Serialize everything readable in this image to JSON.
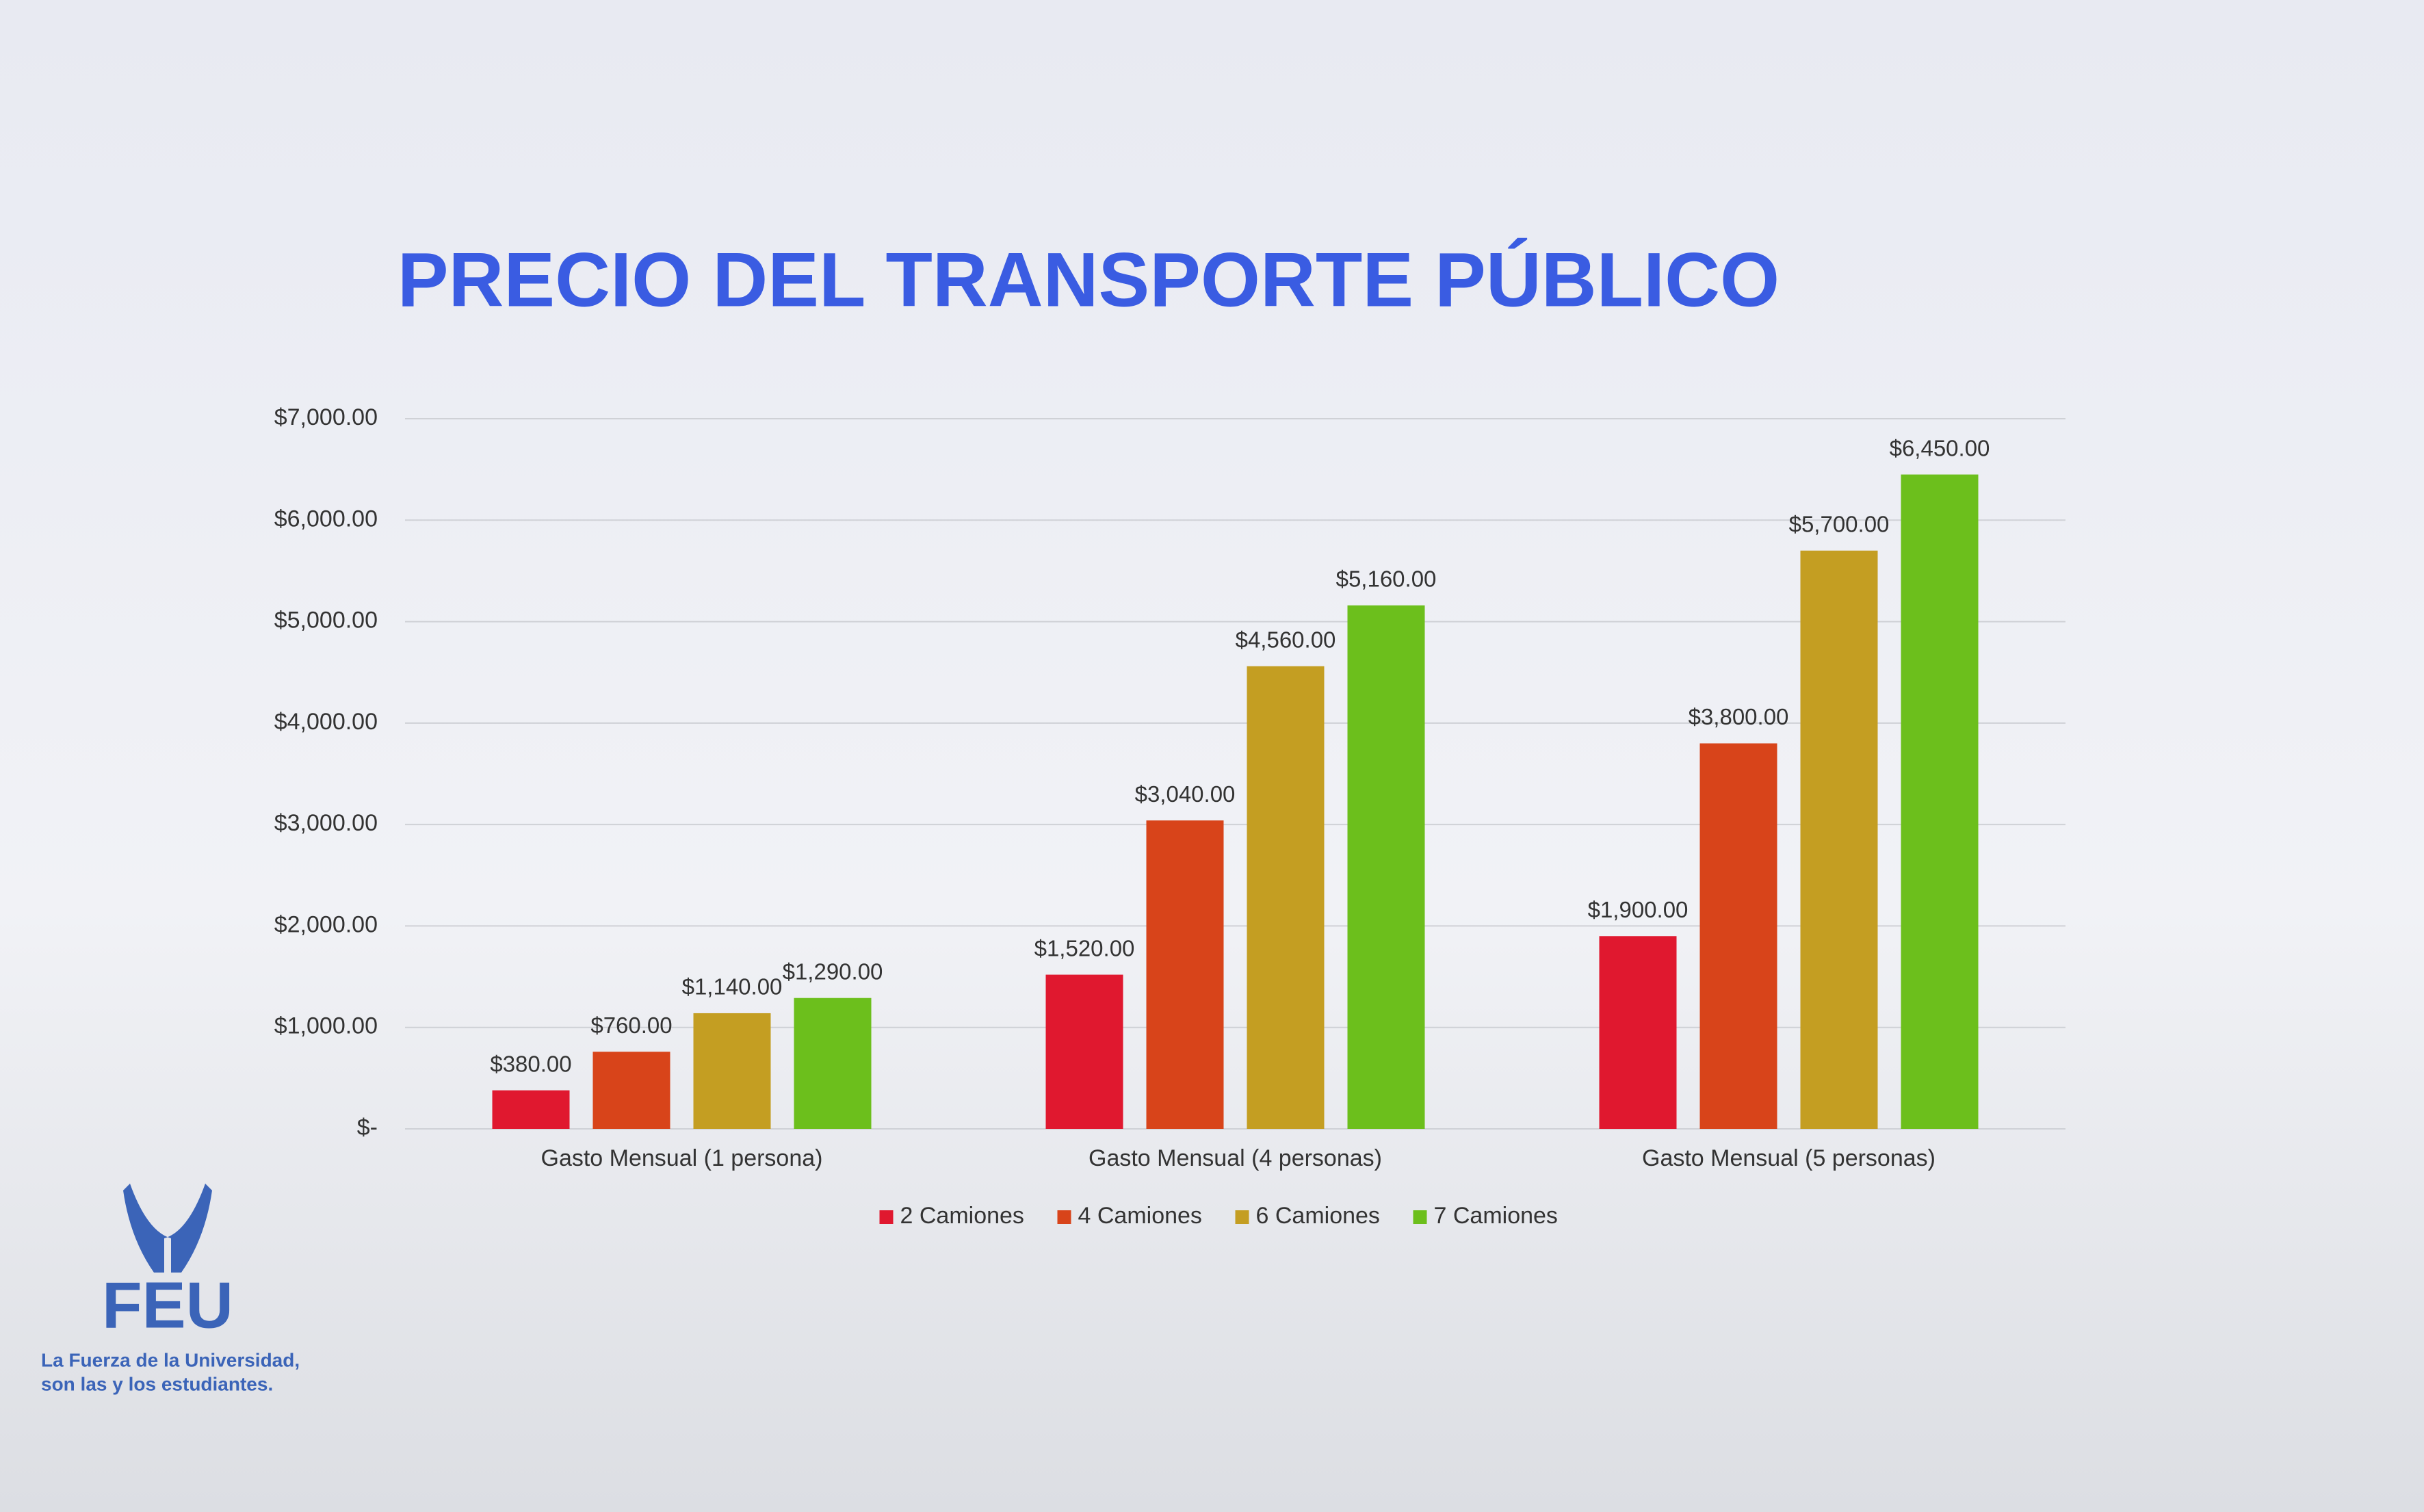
{
  "chart_data": {
    "type": "bar",
    "title": "PRECIO DEL TRANSPORTE PÚBLICO",
    "categories": [
      "Gasto Mensual (1 persona)",
      "Gasto Mensual (4 personas)",
      "Gasto Mensual (5 personas)"
    ],
    "series": [
      {
        "name": "2 Camiones",
        "color": "#e0182f",
        "values": [
          380,
          1520,
          1900
        ],
        "value_labels": [
          "$380.00",
          "$1,520.00",
          "$1,900.00"
        ]
      },
      {
        "name": "4 Camiones",
        "color": "#d8441a",
        "values": [
          760,
          3040,
          3800
        ],
        "value_labels": [
          "$760.00",
          "$3,040.00",
          "$3,800.00"
        ]
      },
      {
        "name": "6 Camiones",
        "color": "#c49e22",
        "values": [
          1140,
          4560,
          5700
        ],
        "value_labels": [
          "$1,140.00",
          "$4,560.00",
          "$5,700.00"
        ]
      },
      {
        "name": "7 Camiones",
        "color": "#6cbf1c",
        "values": [
          1290,
          5160,
          6450
        ],
        "value_labels": [
          "$1,290.00",
          "$5,160.00",
          "$6,450.00"
        ]
      }
    ],
    "ylim": [
      0,
      7000
    ],
    "yticks": [
      {
        "value": 0,
        "label": "$-"
      },
      {
        "value": 1000,
        "label": "$1,000.00"
      },
      {
        "value": 2000,
        "label": "$2,000.00"
      },
      {
        "value": 3000,
        "label": "$3,000.00"
      },
      {
        "value": 4000,
        "label": "$4,000.00"
      },
      {
        "value": 5000,
        "label": "$5,000.00"
      },
      {
        "value": 6000,
        "label": "$6,000.00"
      },
      {
        "value": 7000,
        "label": "$7,000.00"
      }
    ],
    "grid": true,
    "legend": "bottom"
  },
  "logo": {
    "acronym": "FEU",
    "tagline": [
      "La Fuerza de la Universidad,",
      "son las y los estudiantes."
    ]
  }
}
